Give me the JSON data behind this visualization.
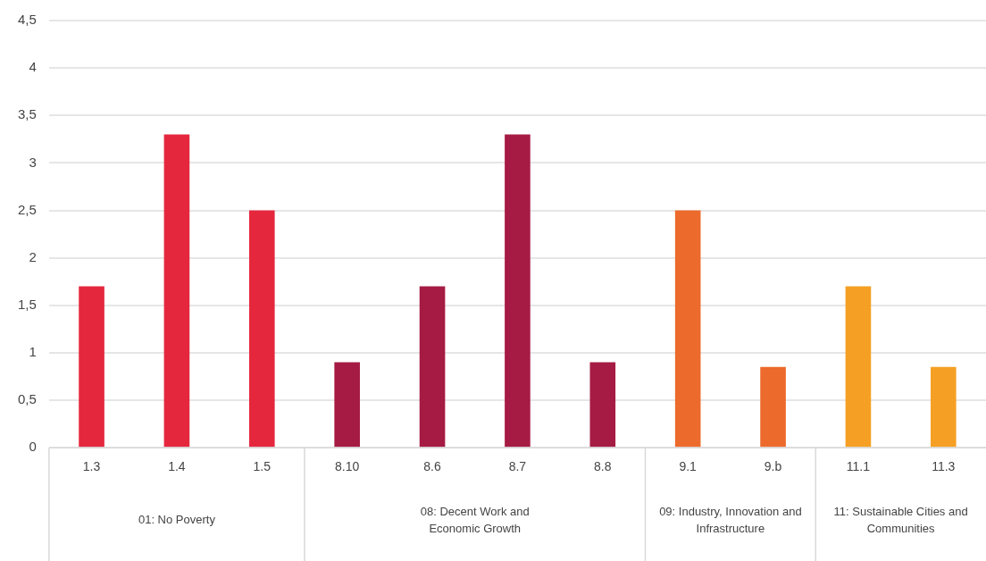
{
  "chart_data": {
    "type": "bar",
    "categories": [
      "1.3",
      "1.4",
      "1.5",
      "8.10",
      "8.6",
      "8.7",
      "8.8",
      "9.1",
      "9.b",
      "11.1",
      "11.3"
    ],
    "series": [
      {
        "color": "#e5273e",
        "values": [
          1.7,
          3.3,
          2.5,
          null,
          null,
          null,
          null,
          null,
          null,
          null,
          null
        ]
      },
      {
        "color": "#a51b43",
        "values": [
          null,
          null,
          null,
          0.9,
          1.7,
          3.3,
          0.9,
          null,
          null,
          null,
          null
        ]
      },
      {
        "color": "#ec6a2c",
        "values": [
          null,
          null,
          null,
          null,
          null,
          null,
          null,
          2.5,
          0.85,
          null,
          null
        ]
      },
      {
        "color": "#f5a024",
        "values": [
          null,
          null,
          null,
          null,
          null,
          null,
          null,
          null,
          null,
          1.7,
          0.85
        ]
      }
    ],
    "ylim": [
      0,
      4.5
    ],
    "yticks": [
      0,
      {
        "value": 0.5,
        "label": "0,5"
      },
      1,
      {
        "value": 1.5,
        "label": "1,5"
      },
      2,
      {
        "value": 2.5,
        "label": "2,5"
      },
      3,
      {
        "value": 3.5,
        "label": "3,5"
      },
      4,
      {
        "value": 4.5,
        "label": "4,5"
      }
    ],
    "annotations": [
      "01: No Poverty",
      "08: Decent Work and Economic Growth",
      "09: Industry, Innovation and Infrastructure",
      "11: Sustainable Cities and Communities"
    ],
    "grid": "y",
    "legend": false
  }
}
